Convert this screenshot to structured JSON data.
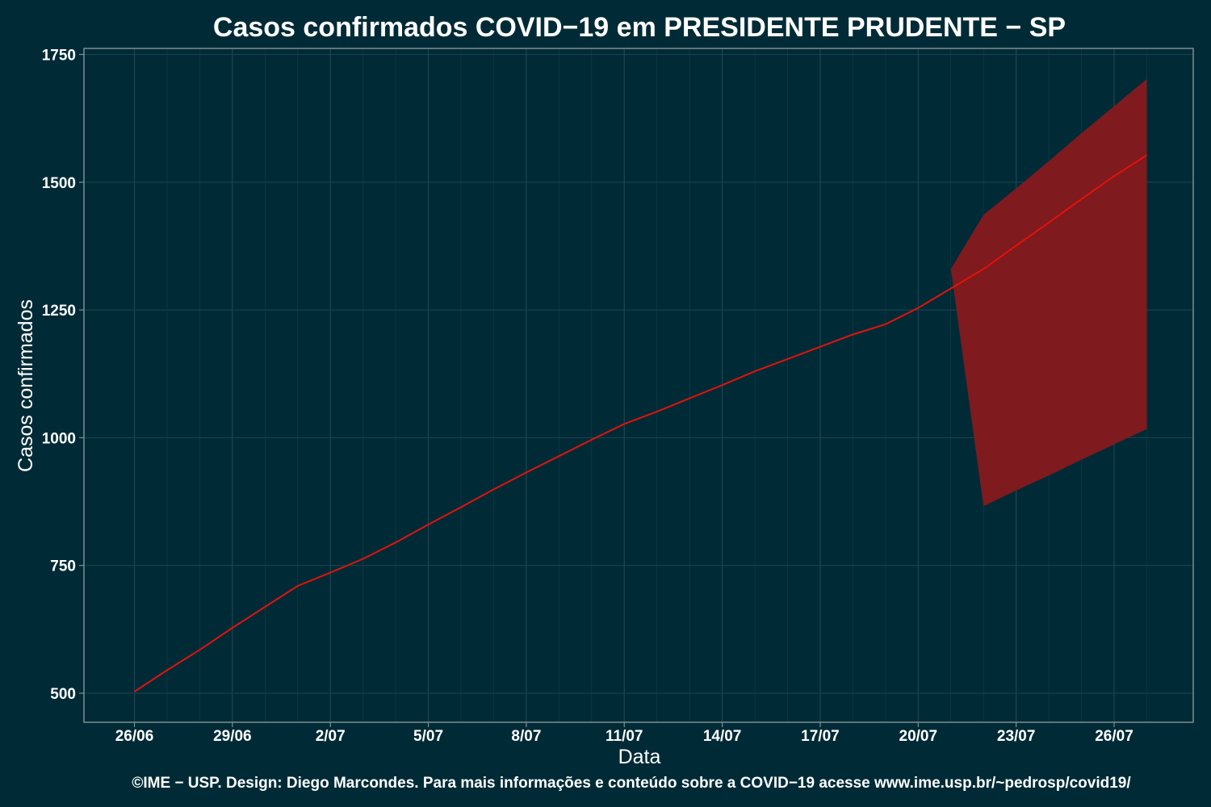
{
  "chart_data": {
    "type": "line",
    "title": "Casos confirmados COVID−19 em PRESIDENTE PRUDENTE − SP",
    "xlabel": "Data",
    "ylabel": "Casos confirmados",
    "caption": "©IME − USP. Design: Diego Marcondes. Para mais informações e conteúdo sobre a COVID−19 acesse www.ime.usp.br/~pedrosp/covid19/",
    "x_ticks": [
      {
        "label": "26/06",
        "day": 0
      },
      {
        "label": "29/06",
        "day": 3
      },
      {
        "label": "2/07",
        "day": 6
      },
      {
        "label": "5/07",
        "day": 9
      },
      {
        "label": "8/07",
        "day": 12
      },
      {
        "label": "11/07",
        "day": 15
      },
      {
        "label": "14/07",
        "day": 18
      },
      {
        "label": "17/07",
        "day": 21
      },
      {
        "label": "20/07",
        "day": 24
      },
      {
        "label": "23/07",
        "day": 27
      },
      {
        "label": "26/07",
        "day": 30
      }
    ],
    "y_ticks": [
      500,
      750,
      1000,
      1250,
      1500,
      1750
    ],
    "xlim": [
      "25/06",
      "28/07"
    ],
    "ylim": [
      450,
      1765
    ],
    "grid": true,
    "colors": {
      "background": "#002b36",
      "grid": "#1e4550",
      "line": "#e3120b",
      "band": "#7f1a1e",
      "text": "#ffffff",
      "border": "#7d8e93"
    },
    "series": [
      {
        "dates": [
          "26/06",
          "27/06",
          "28/06",
          "29/06",
          "30/06",
          "1/07",
          "2/07",
          "3/07",
          "4/07",
          "5/07",
          "6/07",
          "7/07",
          "8/07",
          "9/07",
          "10/07",
          "11/07",
          "12/07",
          "13/07",
          "14/07",
          "15/07",
          "16/07",
          "17/07",
          "18/07",
          "19/07",
          "20/07",
          "21/07",
          "22/07",
          "23/07",
          "24/07",
          "25/07",
          "26/07",
          "27/07"
        ],
        "values": [
          503,
          545,
          585,
          628,
          669,
          710,
          736,
          763,
          795,
          830,
          864,
          899,
          932,
          964,
          996,
          1027,
          1051,
          1077,
          1103,
          1130,
          1154,
          1178,
          1202,
          1222,
          1254,
          1292,
          1330,
          1376,
          1421,
          1467,
          1512,
          1553
        ]
      }
    ],
    "prediction_band": {
      "dates": [
        "21/07",
        "22/07",
        "23/07",
        "24/07",
        "25/07",
        "26/07",
        "27/07"
      ],
      "upper": [
        1330,
        1436,
        1488,
        1541,
        1596,
        1649,
        1702
      ],
      "lower": [
        1330,
        866,
        897,
        926,
        957,
        987,
        1017
      ]
    }
  }
}
